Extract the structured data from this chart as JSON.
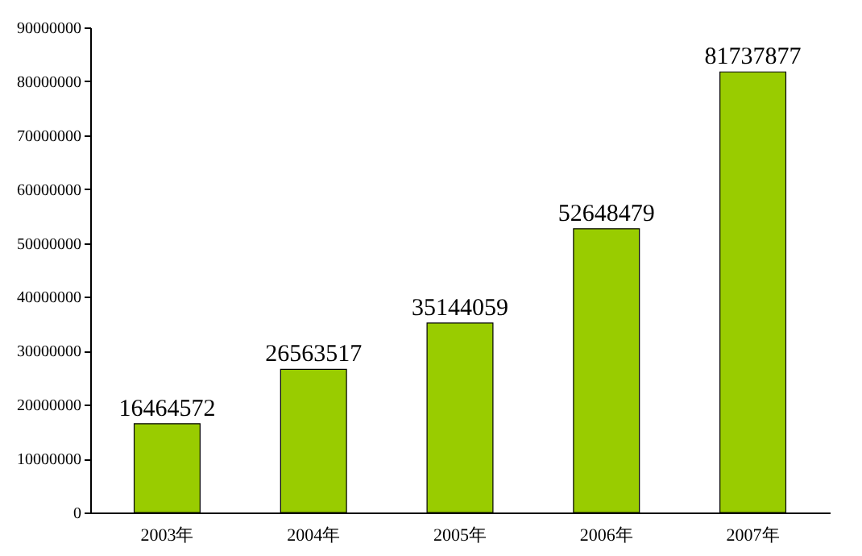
{
  "chart_data": {
    "type": "bar",
    "categories": [
      "2003年",
      "2004年",
      "2005年",
      "2006年",
      "2007年"
    ],
    "values": [
      16464572,
      26563517,
      35144059,
      52648479,
      81737877
    ],
    "color": "#99cc00",
    "ylim": [
      0,
      90000000
    ],
    "yticks": [
      0,
      10000000,
      20000000,
      30000000,
      40000000,
      50000000,
      60000000,
      70000000,
      80000000,
      90000000
    ],
    "data_labels": true,
    "grid": false
  }
}
